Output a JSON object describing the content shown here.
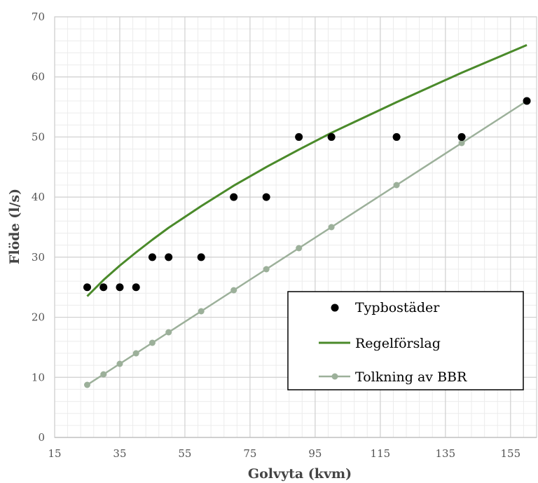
{
  "chart_data": {
    "type": "scatter",
    "xlabel": "Golvyta (kvm)",
    "ylabel": "Flöde (l/s)",
    "xlim": [
      15,
      163
    ],
    "ylim": [
      0,
      70
    ],
    "x_ticks": [
      15,
      35,
      55,
      75,
      95,
      115,
      135,
      155
    ],
    "y_ticks": [
      0,
      10,
      20,
      30,
      40,
      50,
      60,
      70
    ],
    "x_tick_labels": [
      "15",
      "35",
      "55",
      "75",
      "95",
      "115",
      "135",
      "155"
    ],
    "y_tick_labels": [
      "0",
      "10",
      "20",
      "30",
      "40",
      "50",
      "60",
      "70"
    ],
    "grid": true,
    "minor_grid": true,
    "legend_position": "bottom-right",
    "series": [
      {
        "name": "Typbostäder",
        "kind": "markers",
        "color": "#000000",
        "points": [
          {
            "x": 25,
            "y": 25
          },
          {
            "x": 30,
            "y": 25
          },
          {
            "x": 35,
            "y": 25
          },
          {
            "x": 40,
            "y": 25
          },
          {
            "x": 45,
            "y": 30
          },
          {
            "x": 50,
            "y": 30
          },
          {
            "x": 60,
            "y": 30
          },
          {
            "x": 70,
            "y": 40
          },
          {
            "x": 80,
            "y": 40
          },
          {
            "x": 90,
            "y": 50
          },
          {
            "x": 100,
            "y": 50
          },
          {
            "x": 120,
            "y": 50
          },
          {
            "x": 140,
            "y": 50
          },
          {
            "x": 160,
            "y": 56
          }
        ]
      },
      {
        "name": "Regelförslag",
        "kind": "line",
        "color": "#4a8a2a",
        "points": [
          {
            "x": 25,
            "y": 23.5
          },
          {
            "x": 30,
            "y": 26.2
          },
          {
            "x": 35,
            "y": 28.6
          },
          {
            "x": 40,
            "y": 30.8
          },
          {
            "x": 45,
            "y": 32.9
          },
          {
            "x": 50,
            "y": 34.9
          },
          {
            "x": 60,
            "y": 38.5
          },
          {
            "x": 70,
            "y": 41.9
          },
          {
            "x": 80,
            "y": 45.0
          },
          {
            "x": 90,
            "y": 47.9
          },
          {
            "x": 100,
            "y": 50.7
          },
          {
            "x": 120,
            "y": 55.8
          },
          {
            "x": 140,
            "y": 60.7
          },
          {
            "x": 160,
            "y": 65.3
          }
        ]
      },
      {
        "name": "Tolkning av BBR",
        "kind": "line-markers",
        "color": "#9cb09a",
        "points": [
          {
            "x": 25,
            "y": 8.75
          },
          {
            "x": 30,
            "y": 10.5
          },
          {
            "x": 35,
            "y": 12.25
          },
          {
            "x": 40,
            "y": 14
          },
          {
            "x": 45,
            "y": 15.75
          },
          {
            "x": 50,
            "y": 17.5
          },
          {
            "x": 60,
            "y": 21
          },
          {
            "x": 70,
            "y": 24.5
          },
          {
            "x": 80,
            "y": 28
          },
          {
            "x": 90,
            "y": 31.5
          },
          {
            "x": 100,
            "y": 35
          },
          {
            "x": 120,
            "y": 42
          },
          {
            "x": 140,
            "y": 49
          },
          {
            "x": 160,
            "y": 56
          }
        ]
      }
    ]
  }
}
